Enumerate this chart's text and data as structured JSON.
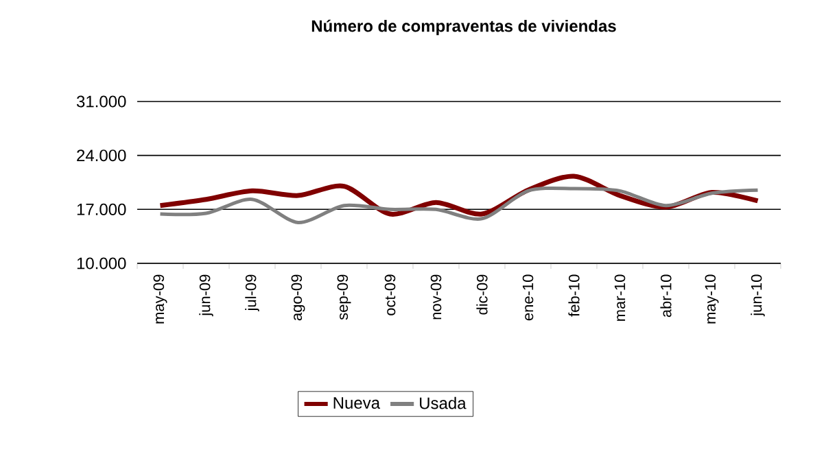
{
  "chart_data": {
    "type": "line",
    "title": "Número de compraventas de viviendas",
    "categories": [
      "may-09",
      "jun-09",
      "jul-09",
      "ago-09",
      "sep-09",
      "oct-09",
      "nov-09",
      "dic-09",
      "ene-10",
      "feb-10",
      "mar-10",
      "abr-10",
      "may-10",
      "jun-10"
    ],
    "series": [
      {
        "name": "Nueva",
        "color": "#800000",
        "values": [
          17500,
          18300,
          19400,
          18800,
          20000,
          16400,
          17900,
          16400,
          19500,
          21300,
          18800,
          17300,
          19200,
          18100
        ]
      },
      {
        "name": "Usada",
        "color": "#808080",
        "values": [
          16400,
          16500,
          18300,
          15300,
          17500,
          17000,
          17000,
          15800,
          19400,
          19700,
          19400,
          17500,
          19100,
          19500
        ]
      }
    ],
    "ylim": [
      10000,
      31000
    ],
    "yticks": [
      {
        "value": 10000,
        "label": "10.000"
      },
      {
        "value": 17000,
        "label": "17.000"
      },
      {
        "value": 24000,
        "label": "24.000"
      },
      {
        "value": 31000,
        "label": "31.000"
      }
    ],
    "grid": "y",
    "legend": "bottom",
    "marker": "none",
    "line_style": "solid"
  }
}
